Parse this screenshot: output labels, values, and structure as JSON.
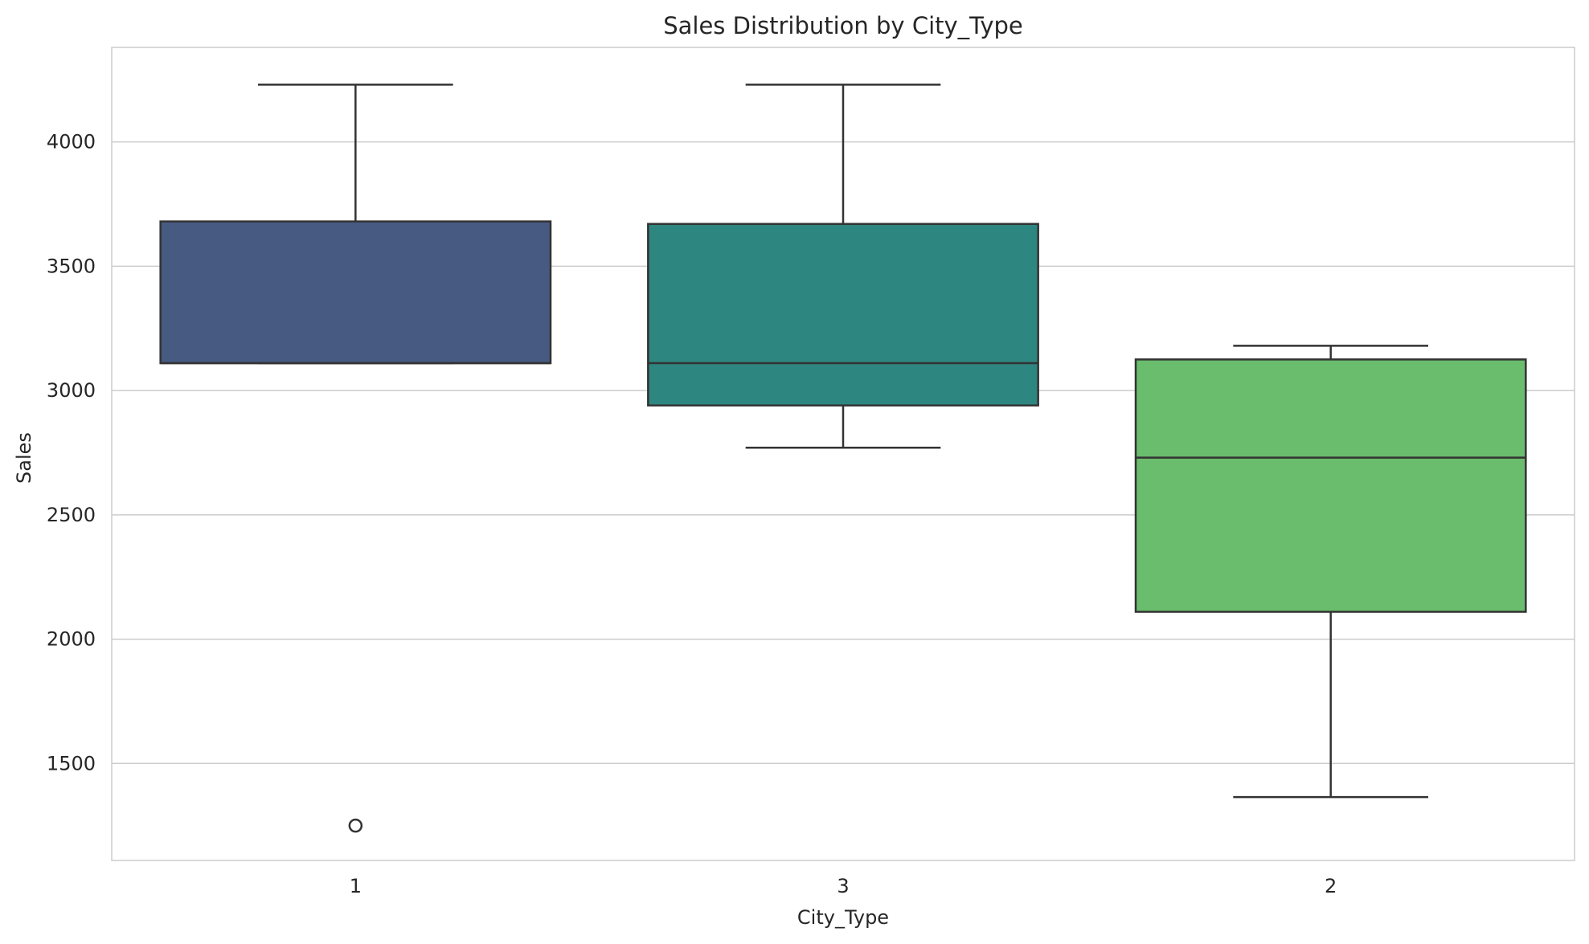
{
  "chart_data": {
    "type": "box",
    "title": "Sales Distribution by City_Type",
    "xlabel": "City_Type",
    "ylabel": "Sales",
    "categories": [
      "1",
      "3",
      "2"
    ],
    "ylim": [
      1110,
      4380
    ],
    "yticks": [
      1500,
      2000,
      2500,
      3000,
      3500,
      4000
    ],
    "grid": "horizontal",
    "boxes": [
      {
        "category": "1",
        "color": "#465a82",
        "whisker_low": 3110,
        "q1": 3110,
        "median": 3110,
        "q3": 3680,
        "whisker_high": 4230,
        "outliers": [
          1250
        ]
      },
      {
        "category": "3",
        "color": "#2e8680",
        "whisker_low": 2770,
        "q1": 2940,
        "median": 3110,
        "q3": 3670,
        "whisker_high": 4230,
        "outliers": []
      },
      {
        "category": "2",
        "color": "#6abd6c",
        "whisker_low": 1365,
        "q1": 2110,
        "median": 2730,
        "q3": 3125,
        "whisker_high": 3180,
        "outliers": []
      }
    ]
  },
  "colors": {
    "grid": "#cccccc",
    "frame": "#cccccc",
    "stroke": "#333333",
    "text": "#262626"
  }
}
